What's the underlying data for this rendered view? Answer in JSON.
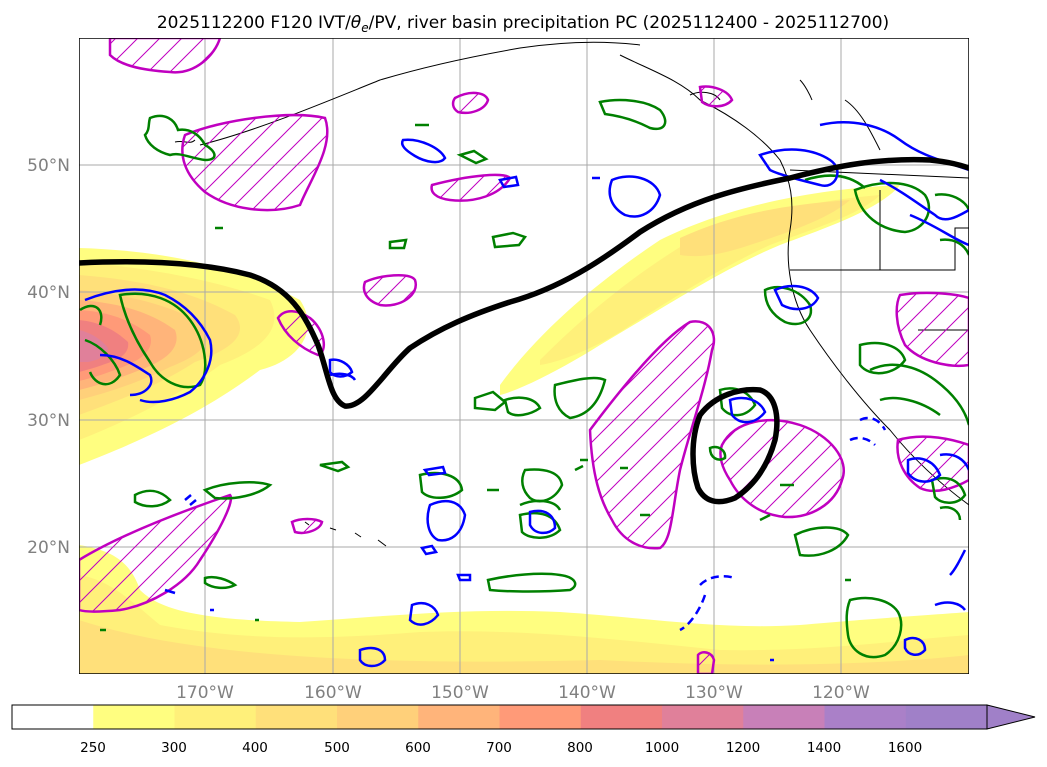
{
  "title_prefix": "2025112200 F120 IVT/",
  "title_theta": "θ",
  "title_theta_sub": "e",
  "title_suffix": "/PV, river basin precipitation PC (2025112400 - 2025112700)",
  "map": {
    "projection": "PlateCarree",
    "lon_range": [
      -180,
      -110
    ],
    "lat_range": [
      10,
      60
    ],
    "gridlines": true,
    "lat_labels": [
      "20°N",
      "30°N",
      "40°N",
      "50°N"
    ],
    "lat_values": [
      20,
      30,
      40,
      50
    ],
    "lon_labels": [
      "170°W",
      "160°W",
      "150°W",
      "140°W",
      "130°W",
      "120°W"
    ],
    "lon_values": [
      -170,
      -160,
      -150,
      -140,
      -130,
      -120
    ]
  },
  "colorbar": {
    "ticks": [
      "250",
      "300",
      "400",
      "500",
      "600",
      "700",
      "800",
      "1000",
      "1200",
      "1400",
      "1600"
    ],
    "levels": [
      250,
      300,
      400,
      500,
      600,
      700,
      800,
      1000,
      1200,
      1400,
      1600
    ],
    "colors": [
      "#ffffff",
      "#fffe80",
      "#fff07a",
      "#ffe07a",
      "#ffd07a",
      "#ffb47a",
      "#ff9a78",
      "#f08080",
      "#e0809a",
      "#c880b8",
      "#aa80c8",
      "#a080c8"
    ],
    "extend": "max"
  },
  "legend_colors": {
    "pv_contour": "#000000",
    "theta_e_blue": "#0000ff",
    "green_contour": "#008000",
    "magenta_hatch": "#c000c0"
  }
}
